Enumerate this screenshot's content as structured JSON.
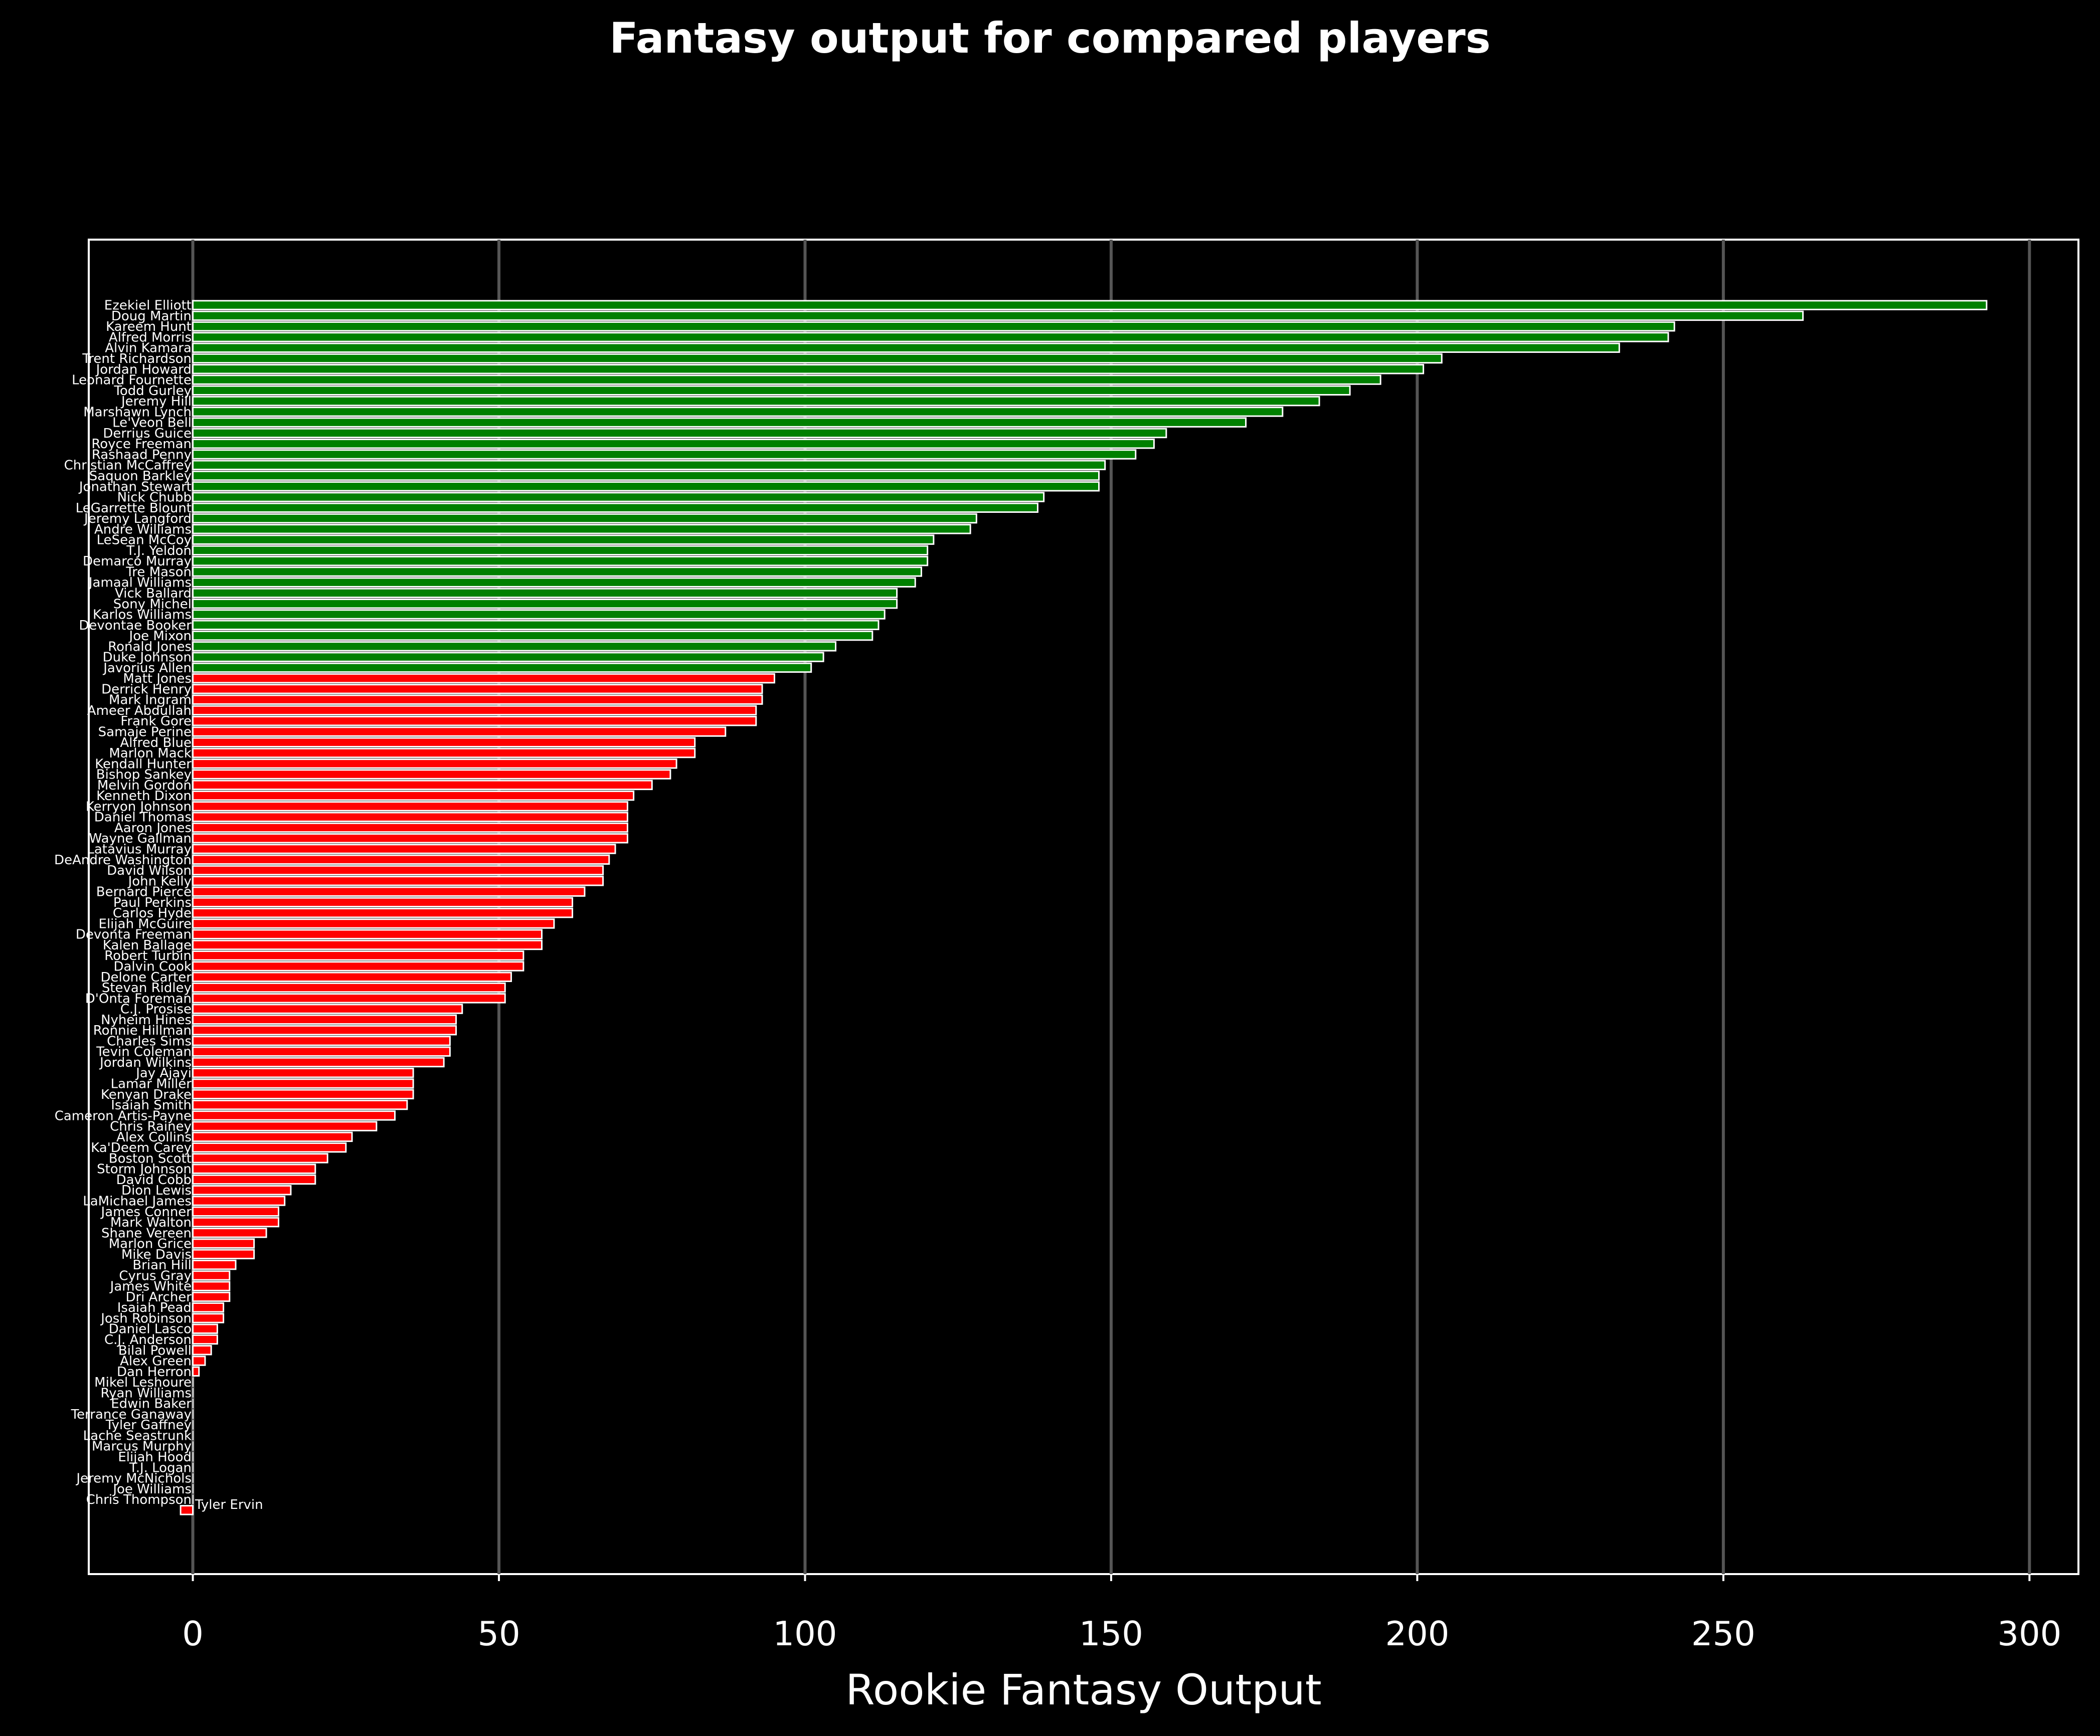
{
  "chart_data": {
    "type": "bar",
    "orientation": "horizontal",
    "title": "Fantasy output for compared players",
    "xlabel": "Rookie Fantasy Output",
    "xlim": [
      -17,
      308
    ],
    "xticks": [
      0,
      50,
      100,
      150,
      200,
      250,
      300
    ],
    "grid": "vertical",
    "colors": {
      "background": "#000000",
      "above": "#008000",
      "below": "#ff0000",
      "edge": "#ffffff",
      "grid": "#555555",
      "text": "#ffffff"
    },
    "threshold": 100,
    "categories": [
      "Ezekiel Elliott",
      "Doug Martin",
      "Kareem Hunt",
      "Alfred Morris",
      "Alvin Kamara",
      "Trent Richardson",
      "Jordan Howard",
      "Leonard Fournette",
      "Todd Gurley",
      "Jeremy Hill",
      "Marshawn Lynch",
      "Le'Veon Bell",
      "Derrius Guice",
      "Royce Freeman",
      "Rashaad Penny",
      "Christian McCaffrey",
      "Saquon Barkley",
      "Jonathan Stewart",
      "Nick Chubb",
      "LeGarrette Blount",
      "Jeremy Langford",
      "Andre Williams",
      "LeSean McCoy",
      "T.J. Yeldon",
      "Demarco Murray",
      "Tre Mason",
      "Jamaal Williams",
      "Vick Ballard",
      "Sony Michel",
      "Karlos Williams",
      "Devontae Booker",
      "Joe Mixon",
      "Ronald Jones",
      "Duke Johnson",
      "Javorius Allen",
      "Matt Jones",
      "Derrick Henry",
      "Mark Ingram",
      "Ameer Abdullah",
      "Frank Gore",
      "Samaje Perine",
      "Alfred Blue",
      "Marlon Mack",
      "Kendall Hunter",
      "Bishop Sankey",
      "Melvin Gordon",
      "Kenneth Dixon",
      "Kerryon Johnson",
      "Daniel Thomas",
      "Aaron Jones",
      "Wayne Gallman",
      "Latavius Murray",
      "DeAndre Washington",
      "David Wilson",
      "John Kelly",
      "Bernard Pierce",
      "Paul Perkins",
      "Carlos Hyde",
      "Elijah McGuire",
      "Devonta Freeman",
      "Kalen Ballage",
      "Robert Turbin",
      "Dalvin Cook",
      "Delone Carter",
      "Stevan Ridley",
      "D'Onta Foreman",
      "C.J. Prosise",
      "Nyheim Hines",
      "Ronnie Hillman",
      "Charles Sims",
      "Tevin Coleman",
      "Jordan Wilkins",
      "Jay Ajayi",
      "Lamar Miller",
      "Kenyan Drake",
      "Isaiah Smith",
      "Cameron Artis-Payne",
      "Chris Rainey",
      "Alex Collins",
      "Ka'Deem Carey",
      "Boston Scott",
      "Storm Johnson",
      "David Cobb",
      "Dion Lewis",
      "LaMichael James",
      "James Conner",
      "Mark Walton",
      "Shane Vereen",
      "Marlon Grice",
      "Mike Davis",
      "Brian Hill",
      "Cyrus Gray",
      "James White",
      "Dri Archer",
      "Isaiah Pead",
      "Josh Robinson",
      "Daniel Lasco",
      "C.J. Anderson",
      "Bilal Powell",
      "Alex Green",
      "Dan Herron",
      "Mikel Leshoure",
      "Ryan Williams",
      "Edwin Baker",
      "Terrance Ganaway",
      "Tyler Gaffney",
      "Lache Seastrunk",
      "Marcus Murphy",
      "Elijah Hood",
      "T.J. Logan",
      "Jeremy McNichols",
      "Joe Williams",
      "Chris Thompson",
      "Tyler Ervin"
    ],
    "values": [
      293,
      263,
      242,
      241,
      233,
      204,
      201,
      194,
      189,
      184,
      178,
      172,
      159,
      157,
      154,
      149,
      148,
      148,
      139,
      138,
      128,
      127,
      121,
      120,
      120,
      119,
      118,
      115,
      115,
      113,
      112,
      111,
      105,
      103,
      101,
      95,
      93,
      93,
      92,
      92,
      87,
      82,
      82,
      79,
      78,
      75,
      72,
      71,
      71,
      71,
      71,
      69,
      68,
      67,
      67,
      64,
      62,
      62,
      59,
      57,
      57,
      54,
      54,
      52,
      51,
      51,
      44,
      43,
      43,
      42,
      42,
      41,
      36,
      36,
      36,
      35,
      33,
      30,
      26,
      25,
      22,
      20,
      20,
      16,
      15,
      14,
      14,
      12,
      10,
      10,
      7,
      6,
      6,
      6,
      5,
      5,
      4,
      4,
      3,
      2,
      1,
      0,
      0,
      0,
      0,
      0,
      0,
      0,
      0,
      0,
      0,
      0,
      0,
      -2
    ],
    "annotation": "Tyler Ervin"
  }
}
